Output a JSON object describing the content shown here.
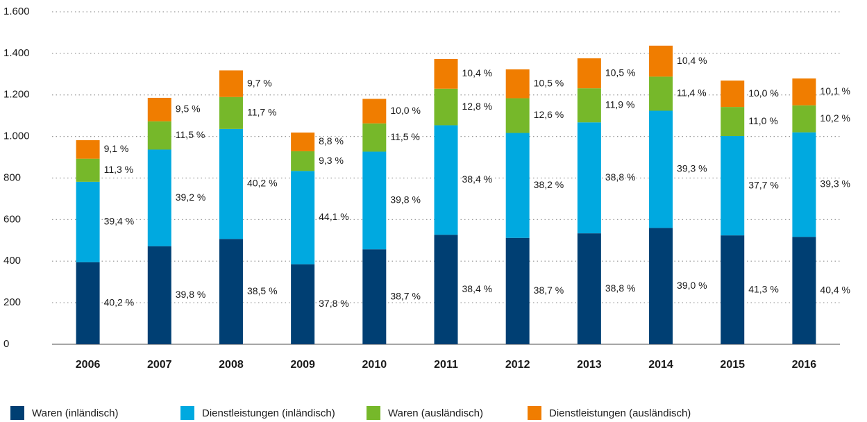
{
  "chart_data": {
    "type": "stacked_bar",
    "categories": [
      "2006",
      "2007",
      "2008",
      "2009",
      "2010",
      "2011",
      "2012",
      "2013",
      "2014",
      "2015",
      "2016"
    ],
    "ylim": [
      0,
      1600
    ],
    "yticks": [
      0,
      200,
      400,
      600,
      800,
      {
        "value": 1000,
        "label": "1.000"
      },
      {
        "value": 1200,
        "label": "1.200"
      },
      {
        "value": 1400,
        "label": "1.400"
      },
      {
        "value": 1600,
        "label": "1.600"
      }
    ],
    "grid": true,
    "legend": "bottom",
    "series": [
      {
        "name": "Waren (inländisch)",
        "color": "#003f73",
        "values": [
          395,
          472,
          507,
          385,
          457,
          527,
          512,
          534,
          560,
          524,
          517
        ],
        "labels": [
          "40,2 %",
          "39,8 %",
          "38,5 %",
          "37,8 %",
          "38,7 %",
          "38,4 %",
          "38,7 %",
          "38,8 %",
          "39,0 %",
          "41,3 %",
          "40,4 %"
        ]
      },
      {
        "name": "Dienstleistungen (inländisch)",
        "color": "#00a9e0",
        "values": [
          387,
          465,
          529,
          449,
          470,
          527,
          505,
          534,
          564,
          478,
          503
        ],
        "labels": [
          "39,4 %",
          "39,2 %",
          "40,2 %",
          "44,1 %",
          "39,8 %",
          "38,4 %",
          "38,2 %",
          "38,8 %",
          "39,3 %",
          "37,7 %",
          "39,3 %"
        ]
      },
      {
        "name": "Waren (ausländisch)",
        "color": "#76b82a",
        "values": [
          111,
          136,
          154,
          95,
          136,
          176,
          167,
          164,
          164,
          140,
          130
        ],
        "labels": [
          "11,3 %",
          "11,5 %",
          "11,7 %",
          "9,3 %",
          "11,5 %",
          "12,8 %",
          "12,6 %",
          "11,9 %",
          "11,4 %",
          "11,0 %",
          "10,2 %"
        ]
      },
      {
        "name": "Dienstleistungen (ausländisch)",
        "color": "#f07d00",
        "values": [
          89,
          113,
          128,
          90,
          118,
          143,
          139,
          144,
          149,
          127,
          129
        ],
        "labels": [
          "9,1 %",
          "9,5 %",
          "9,7 %",
          "8,8 %",
          "10,0 %",
          "10,4 %",
          "10,5 %",
          "10,5 %",
          "10,4 %",
          "10,0 %",
          "10,1 %"
        ]
      }
    ]
  }
}
